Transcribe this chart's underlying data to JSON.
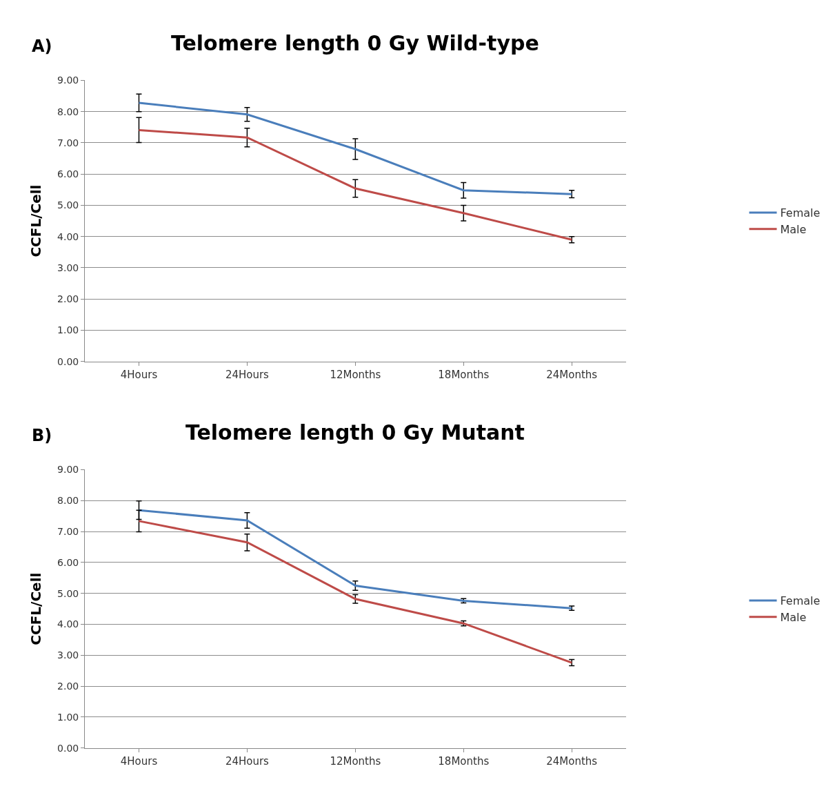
{
  "chart_data": [
    {
      "type": "line",
      "title": "Telomere length 0 Gy Wild-type",
      "annotations": [
        "A)"
      ],
      "ylabel": "CCFL/Cell",
      "categories": [
        "4Hours",
        "24Hours",
        "12Months",
        "18Months",
        "24Months"
      ],
      "series": [
        {
          "name": "Female",
          "color": "#4a7ebb",
          "values": [
            8.28,
            7.91,
            6.8,
            5.48,
            5.36
          ],
          "errors": [
            0.28,
            0.22,
            0.33,
            0.25,
            0.12
          ]
        },
        {
          "name": "Male",
          "color": "#be4b48",
          "values": [
            7.41,
            7.17,
            5.54,
            4.75,
            3.9
          ],
          "errors": [
            0.4,
            0.3,
            0.28,
            0.25,
            0.1
          ]
        }
      ],
      "ylim": [
        0,
        9
      ],
      "yticks": [
        {
          "value": 0,
          "label": "0.00"
        },
        {
          "value": 1,
          "label": "1.00"
        },
        {
          "value": 2,
          "label": "2.00"
        },
        {
          "value": 3,
          "label": "3.00"
        },
        {
          "value": 4,
          "label": "4.00"
        },
        {
          "value": 5,
          "label": "5.00"
        },
        {
          "value": 6,
          "label": "6.00"
        },
        {
          "value": 7,
          "label": "7.00"
        },
        {
          "value": 8,
          "label": "8.00"
        },
        {
          "value": 9,
          "label": "9.00"
        }
      ],
      "grid": "y",
      "legend": "right",
      "line_style": "solid"
    },
    {
      "type": "line",
      "title": "Telomere length 0 Gy Mutant",
      "annotations": [
        "B)"
      ],
      "ylabel": "CCFL/Cell",
      "categories": [
        "4Hours",
        "24Hours",
        "12Months",
        "18Months",
        "24Months"
      ],
      "series": [
        {
          "name": "Female",
          "color": "#4a7ebb",
          "values": [
            7.69,
            7.36,
            5.25,
            4.76,
            4.52
          ],
          "errors": [
            0.3,
            0.25,
            0.15,
            0.07,
            0.07
          ]
        },
        {
          "name": "Male",
          "color": "#be4b48",
          "values": [
            7.34,
            6.65,
            4.82,
            4.03,
            2.76
          ],
          "errors": [
            0.35,
            0.27,
            0.14,
            0.08,
            0.1
          ]
        }
      ],
      "ylim": [
        0,
        9
      ],
      "yticks": [
        {
          "value": 0,
          "label": "0.00"
        },
        {
          "value": 1,
          "label": "1.00"
        },
        {
          "value": 2,
          "label": "2.00"
        },
        {
          "value": 3,
          "label": "3.00"
        },
        {
          "value": 4,
          "label": "4.00"
        },
        {
          "value": 5,
          "label": "5.00"
        },
        {
          "value": 6,
          "label": "6.00"
        },
        {
          "value": 7,
          "label": "7.00"
        },
        {
          "value": 8,
          "label": "8.00"
        },
        {
          "value": 9,
          "label": "9.00"
        }
      ],
      "grid": "y",
      "legend": "right",
      "line_style": "solid"
    }
  ]
}
